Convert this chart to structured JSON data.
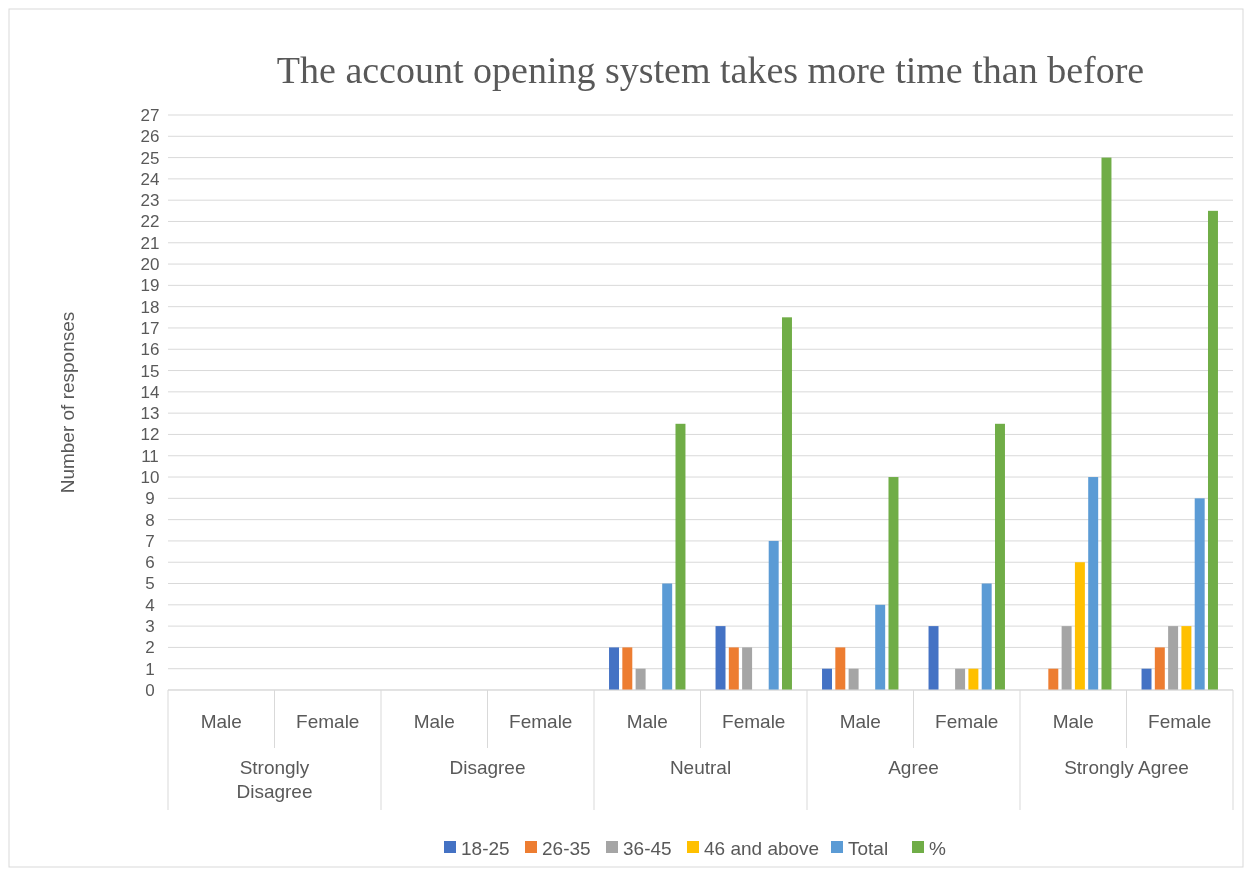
{
  "chart_data": {
    "type": "bar",
    "title": "The account opening system takes more time than before",
    "ylabel": "Number of responses",
    "categories": [
      "Male",
      "Female",
      "Male",
      "Female",
      "Male",
      "Female",
      "Male",
      "Female",
      "Male",
      "Female"
    ],
    "annotations": [
      "Strongly Disagree",
      "Disagree",
      "Neutral",
      "Agree",
      "Strongly Agree"
    ],
    "series": [
      {
        "name": "18-25",
        "color": "#4472c4",
        "values": [
          0,
          0,
          0,
          0,
          2,
          3,
          1,
          3,
          0,
          1
        ]
      },
      {
        "name": "26-35",
        "color": "#ed7d31",
        "values": [
          0,
          0,
          0,
          0,
          2,
          2,
          2,
          0,
          1,
          2
        ]
      },
      {
        "name": "36-45",
        "color": "#a5a5a5",
        "values": [
          0,
          0,
          0,
          0,
          1,
          2,
          1,
          1,
          3,
          3
        ]
      },
      {
        "name": "46 and above",
        "color": "#ffc000",
        "values": [
          0,
          0,
          0,
          0,
          0,
          0,
          0,
          1,
          6,
          3
        ]
      },
      {
        "name": "Total",
        "color": "#5b9bd5",
        "values": [
          0,
          0,
          0,
          0,
          5,
          7,
          4,
          5,
          10,
          9
        ]
      },
      {
        "name": "%",
        "color": "#70ad47",
        "values": [
          0,
          0,
          0,
          0,
          12.5,
          17.5,
          10,
          12.5,
          25,
          22.5
        ]
      }
    ],
    "ylim": [
      0,
      27
    ],
    "yticks": [
      0,
      1,
      2,
      3,
      4,
      5,
      6,
      7,
      8,
      9,
      10,
      11,
      12,
      13,
      14,
      15,
      16,
      17,
      18,
      19,
      20,
      21,
      22,
      23,
      24,
      25,
      26,
      27
    ],
    "grid": "y",
    "legend": "bottom"
  }
}
